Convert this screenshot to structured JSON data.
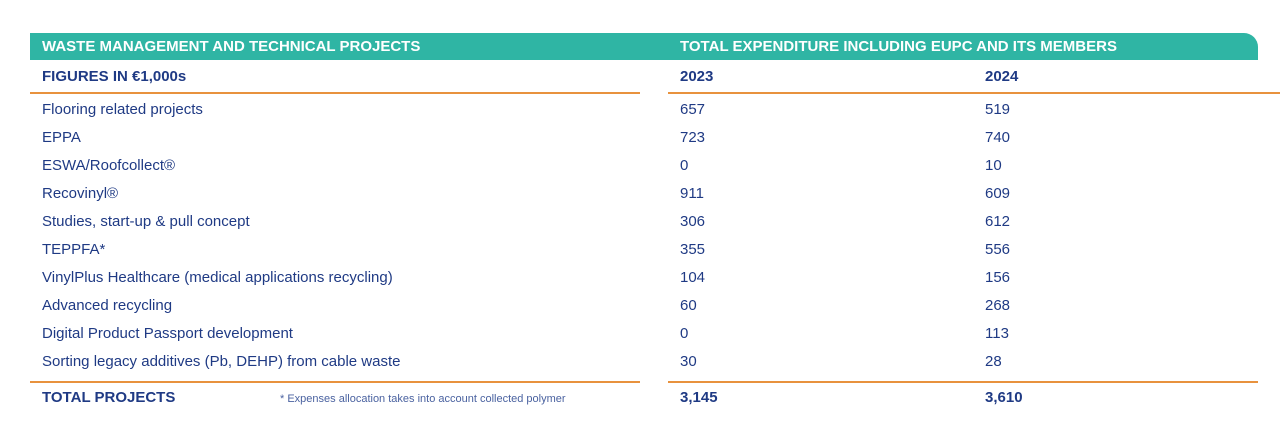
{
  "header": {
    "left": "WASTE MANAGEMENT AND TECHNICAL PROJECTS",
    "right": "TOTAL EXPENDITURE INCLUDING EUPC AND ITS MEMBERS"
  },
  "subheader": {
    "label": "FIGURES IN €1,000s",
    "years": [
      "2023",
      "2024"
    ]
  },
  "table": {
    "rows": [
      [
        "Flooring related projects",
        657,
        519
      ],
      [
        "EPPA",
        723,
        740
      ],
      [
        "ESWA/Roofcollect®",
        0,
        10
      ],
      [
        "Recovinyl®",
        911,
        609
      ],
      [
        "Studies, start-up & pull concept",
        306,
        612
      ],
      [
        "TEPPFA*",
        355,
        556
      ],
      [
        "VinylPlus Healthcare (medical applications recycling)",
        104,
        156
      ],
      [
        "Advanced recycling",
        60,
        268
      ],
      [
        "Digital Product Passport development",
        0,
        113
      ],
      [
        "Sorting legacy additives (Pb, DEHP) from cable waste",
        30,
        28
      ]
    ]
  },
  "total": {
    "label": "TOTAL PROJECTS",
    "note": "* Expenses allocation takes into account collected polymer",
    "values": [
      "3,145",
      "3,610"
    ]
  }
}
